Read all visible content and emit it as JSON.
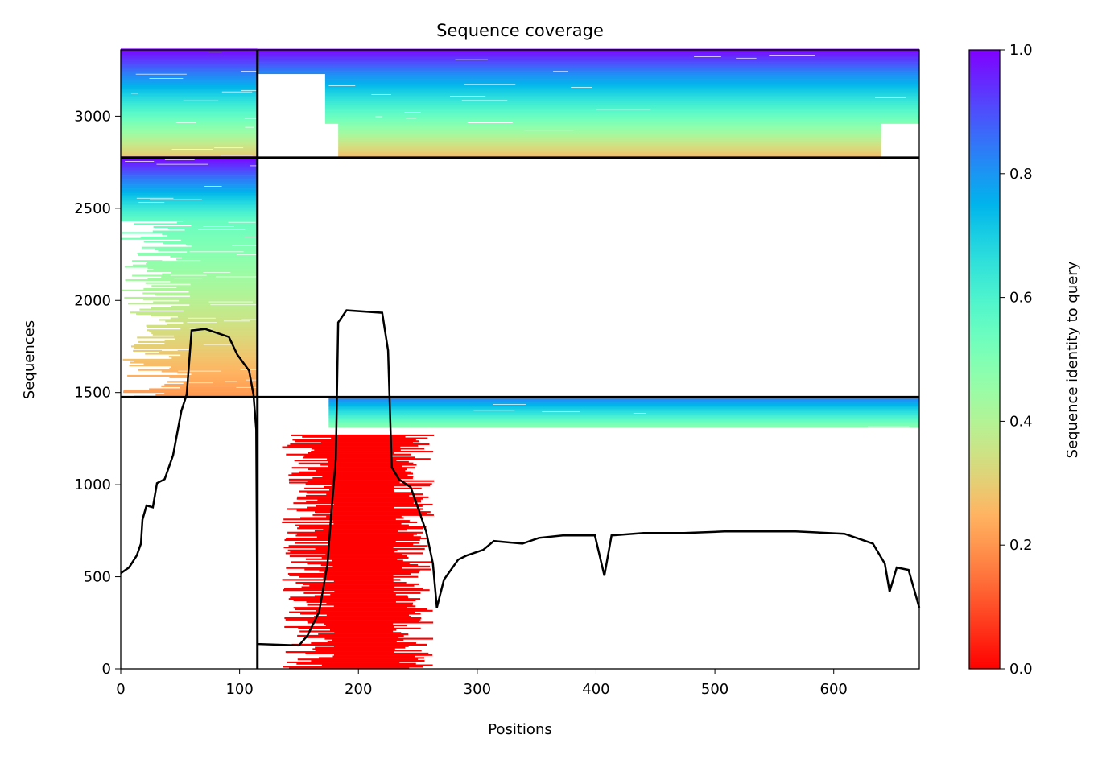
{
  "chart_data": {
    "type": "heatmap",
    "title": "Sequence coverage",
    "xlabel": "Positions",
    "ylabel": "Sequences",
    "xlim": [
      0,
      672
    ],
    "ylim": [
      0,
      3360
    ],
    "xticks": [
      0,
      100,
      200,
      300,
      400,
      500,
      600
    ],
    "yticks": [
      0,
      500,
      1000,
      1500,
      2000,
      2500,
      3000
    ],
    "colorbar": {
      "label": "Sequence identity to query",
      "colormap": "rainbow",
      "range": [
        0.0,
        1.0
      ],
      "ticks": [
        "0.0",
        "0.2",
        "0.4",
        "0.6",
        "0.8",
        "1.0"
      ]
    },
    "separators": {
      "vertical_x": [
        115
      ],
      "horizontal_y": [
        1475,
        2775
      ]
    },
    "blocks": [
      {
        "x": [
          0,
          115
        ],
        "y": [
          2775,
          3360
        ],
        "identity": [
          0.28,
          1.0
        ],
        "ragged": 60
      },
      {
        "x": [
          115,
          672
        ],
        "y": [
          3230,
          3360
        ],
        "identity": [
          0.82,
          1.0
        ],
        "ragged": 0
      },
      {
        "x": [
          172,
          672
        ],
        "y": [
          2960,
          3230
        ],
        "identity": [
          0.5,
          0.82
        ],
        "ragged": 0
      },
      {
        "x": [
          183,
          640
        ],
        "y": [
          2775,
          2960
        ],
        "identity": [
          0.26,
          0.5
        ],
        "ragged": 0
      },
      {
        "x": [
          0,
          115
        ],
        "y": [
          2430,
          2775
        ],
        "identity": [
          0.55,
          1.0
        ],
        "ragged": 50
      },
      {
        "x": [
          60,
          115
        ],
        "y": [
          1475,
          2430
        ],
        "identity": [
          0.2,
          0.55
        ],
        "ragged": 60
      },
      {
        "x": [
          175,
          672
        ],
        "y": [
          1310,
          1475
        ],
        "identity": [
          0.48,
          0.85
        ],
        "ragged": 0
      },
      {
        "x": [
          180,
          228
        ],
        "y": [
          0,
          1270
        ],
        "identity": [
          0.0,
          0.0
        ],
        "ragged": 45
      }
    ],
    "coverage_line": {
      "x": [
        0,
        7,
        13.5,
        17,
        18.3,
        21.7,
        27,
        30.5,
        37,
        44,
        51,
        55.5,
        59.6,
        71,
        91,
        98,
        108,
        111.7,
        114,
        115,
        150,
        157,
        167,
        174,
        177,
        181,
        183,
        190,
        220,
        225,
        228,
        234,
        244,
        250,
        257,
        262.7,
        266,
        272,
        284,
        291,
        305,
        314,
        338,
        352,
        372,
        399,
        407,
        413,
        440,
        474,
        508,
        548,
        568,
        609,
        623,
        633,
        643,
        647,
        653,
        663,
        672
      ],
      "y": [
        519,
        550,
        615,
        680,
        810,
        886,
        877,
        1008,
        1030,
        1160,
        1400,
        1488,
        1837,
        1845,
        1802,
        1706,
        1619,
        1488,
        1300,
        135,
        127,
        179,
        310,
        572,
        833,
        1139,
        1880,
        1946,
        1933,
        1728,
        1095,
        1030,
        986,
        877,
        746,
        571,
        332,
        484,
        593,
        615,
        646,
        694,
        680,
        711,
        724,
        724,
        506,
        724,
        737,
        737,
        746,
        746,
        746,
        733,
        702,
        680,
        571,
        419,
        550,
        537,
        332
      ]
    }
  }
}
